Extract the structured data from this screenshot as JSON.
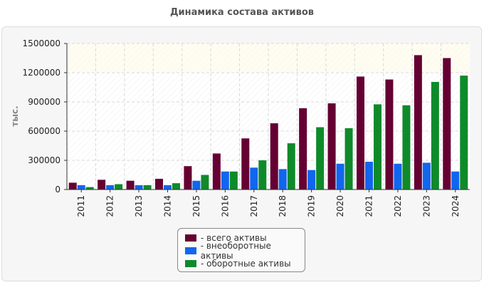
{
  "chart_data": {
    "type": "bar",
    "title": "Динамика состава активов",
    "xlabel": "",
    "ylabel": "тыс.",
    "ylim": [
      0,
      1500000
    ],
    "yticks": [
      0,
      300000,
      600000,
      900000,
      1200000,
      1500000
    ],
    "grid": true,
    "legend_position": "bottom-center",
    "categories": [
      "2011",
      "2012",
      "2013",
      "2014",
      "2015",
      "2016",
      "2017",
      "2018",
      "2019",
      "2020",
      "2021",
      "2022",
      "2023",
      "2024"
    ],
    "series": [
      {
        "name": "- всего активы",
        "color": "#650032",
        "values": [
          70000,
          100000,
          90000,
          110000,
          240000,
          370000,
          525000,
          680000,
          835000,
          885000,
          1160000,
          1130000,
          1380000,
          1350000
        ]
      },
      {
        "name": "- внеоборотные активы",
        "color": "#1166ee",
        "values": [
          45000,
          45000,
          45000,
          45000,
          90000,
          185000,
          225000,
          210000,
          200000,
          265000,
          285000,
          265000,
          275000,
          185000
        ]
      },
      {
        "name": "- оборотные активы",
        "color": "#0f8a2a",
        "values": [
          25000,
          55000,
          45000,
          65000,
          150000,
          185000,
          300000,
          475000,
          640000,
          630000,
          875000,
          865000,
          1105000,
          1170000
        ]
      }
    ]
  }
}
